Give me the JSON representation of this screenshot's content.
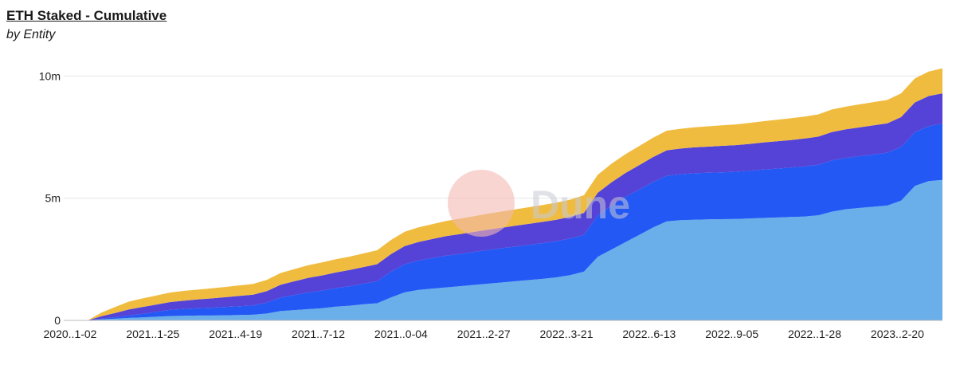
{
  "chart_title": "ETH Staked - Cumulative",
  "chart_subtitle": "by Entity",
  "watermark": {
    "text": "Dune",
    "circle_color": "#f3b9b0"
  },
  "chart_data": {
    "type": "area",
    "stacked": true,
    "title": "ETH Staked - Cumulative",
    "subtitle": "by Entity",
    "xlabel": "",
    "ylabel": "",
    "ylim": [
      0,
      10500000
    ],
    "y_ticks": [
      {
        "value": 0,
        "label": "0"
      },
      {
        "value": 5000000,
        "label": "5m"
      },
      {
        "value": 10000000,
        "label": "10m"
      }
    ],
    "x_ticks": [
      "2020..1-02",
      "2021..1-25",
      "2021..4-19",
      "2021..7-12",
      "2021..0-04",
      "2021..2-27",
      "2022..3-21",
      "2022..6-13",
      "2022..9-05",
      "2022..1-28",
      "2023..2-20"
    ],
    "grid": true,
    "legend": "none",
    "x": [
      "2020-11-02",
      "2020-11-16",
      "2020-11-30",
      "2020-12-14",
      "2020-12-28",
      "2021-01-11",
      "2021-01-25",
      "2021-02-08",
      "2021-02-22",
      "2021-03-08",
      "2021-03-22",
      "2021-04-05",
      "2021-04-19",
      "2021-05-03",
      "2021-05-17",
      "2021-05-31",
      "2021-06-14",
      "2021-06-28",
      "2021-07-12",
      "2021-07-26",
      "2021-08-09",
      "2021-08-23",
      "2021-09-06",
      "2021-09-20",
      "2021-10-04",
      "2021-10-18",
      "2021-11-01",
      "2021-11-15",
      "2021-11-29",
      "2021-12-13",
      "2021-12-27",
      "2022-01-10",
      "2022-01-24",
      "2022-02-07",
      "2022-02-21",
      "2022-03-07",
      "2022-03-21",
      "2022-04-04",
      "2022-04-18",
      "2022-05-02",
      "2022-05-16",
      "2022-05-30",
      "2022-06-13",
      "2022-06-27",
      "2022-07-11",
      "2022-07-25",
      "2022-08-08",
      "2022-08-22",
      "2022-09-05",
      "2022-09-19",
      "2022-10-03",
      "2022-10-17",
      "2022-10-31",
      "2022-11-14",
      "2022-11-28",
      "2022-12-12",
      "2022-12-26",
      "2023-01-09",
      "2023-01-23",
      "2023-02-06",
      "2023-02-20",
      "2023-03-06",
      "2023-03-20"
    ],
    "series": [
      {
        "color": "#6aaeea",
        "values": [
          0,
          40000,
          70000,
          100000,
          120000,
          150000,
          180000,
          190000,
          200000,
          200000,
          210000,
          220000,
          230000,
          280000,
          380000,
          420000,
          460000,
          500000,
          560000,
          600000,
          660000,
          700000,
          940000,
          1150000,
          1250000,
          1300000,
          1350000,
          1400000,
          1450000,
          1500000,
          1550000,
          1600000,
          1650000,
          1700000,
          1760000,
          1850000,
          2000000,
          2600000,
          2900000,
          3200000,
          3500000,
          3800000,
          4050000,
          4100000,
          4120000,
          4130000,
          4140000,
          4150000,
          4170000,
          4190000,
          4210000,
          4230000,
          4250000,
          4300000,
          4450000,
          4550000,
          4600000,
          4650000,
          4700000,
          4900000,
          5500000,
          5700000,
          5750000
        ]
      },
      {
        "color": "#2358f5",
        "values": [
          0,
          30000,
          60000,
          100000,
          150000,
          200000,
          250000,
          280000,
          300000,
          320000,
          340000,
          360000,
          380000,
          450000,
          560000,
          620000,
          680000,
          720000,
          760000,
          800000,
          840000,
          900000,
          1050000,
          1150000,
          1200000,
          1250000,
          1300000,
          1320000,
          1350000,
          1380000,
          1400000,
          1420000,
          1440000,
          1460000,
          1480000,
          1500000,
          1500000,
          1700000,
          1800000,
          1850000,
          1850000,
          1860000,
          1870000,
          1880000,
          1900000,
          1910000,
          1920000,
          1930000,
          1950000,
          1980000,
          2000000,
          2020000,
          2050000,
          2070000,
          2100000,
          2100000,
          2120000,
          2140000,
          2160000,
          2200000,
          2200000,
          2250000,
          2300000
        ]
      },
      {
        "color": "#5443d6",
        "values": [
          0,
          100000,
          170000,
          250000,
          280000,
          300000,
          320000,
          340000,
          360000,
          380000,
          400000,
          420000,
          440000,
          470000,
          520000,
          560000,
          600000,
          620000,
          640000,
          660000,
          680000,
          700000,
          720000,
          740000,
          760000,
          780000,
          800000,
          810000,
          820000,
          830000,
          840000,
          850000,
          860000,
          870000,
          880000,
          890000,
          900000,
          920000,
          950000,
          980000,
          1000000,
          1020000,
          1040000,
          1050000,
          1060000,
          1070000,
          1080000,
          1090000,
          1100000,
          1110000,
          1120000,
          1130000,
          1140000,
          1150000,
          1160000,
          1170000,
          1180000,
          1190000,
          1200000,
          1220000,
          1220000,
          1230000,
          1240000
        ]
      },
      {
        "color": "#f0bc40",
        "values": [
          0,
          150000,
          250000,
          320000,
          350000,
          370000,
          390000,
          400000,
          400000,
          410000,
          420000,
          430000,
          440000,
          460000,
          480000,
          500000,
          520000,
          530000,
          540000,
          550000,
          560000,
          570000,
          580000,
          590000,
          600000,
          610000,
          620000,
          630000,
          640000,
          650000,
          660000,
          670000,
          680000,
          690000,
          700000,
          700000,
          720000,
          740000,
          760000,
          770000,
          780000,
          790000,
          800000,
          810000,
          820000,
          830000,
          840000,
          850000,
          860000,
          870000,
          880000,
          890000,
          900000,
          910000,
          920000,
          930000,
          940000,
          950000,
          960000,
          970000,
          980000,
          1000000,
          1020000
        ]
      }
    ]
  }
}
